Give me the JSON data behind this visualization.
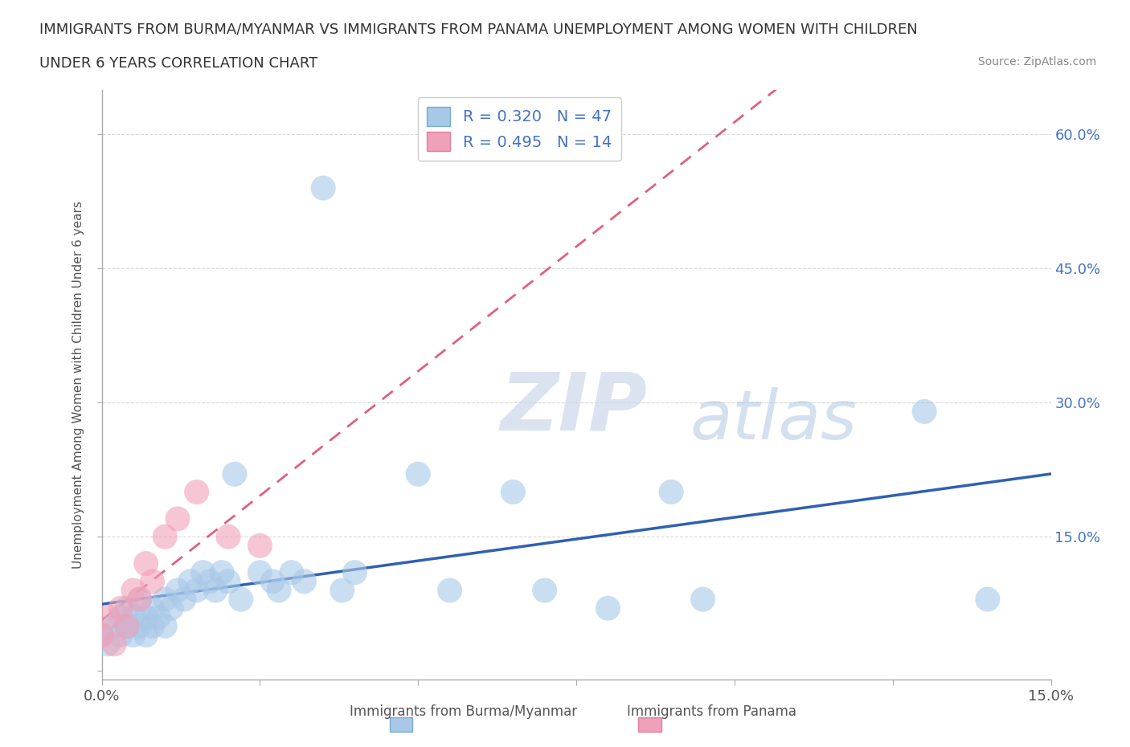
{
  "title_line1": "IMMIGRANTS FROM BURMA/MYANMAR VS IMMIGRANTS FROM PANAMA UNEMPLOYMENT AMONG WOMEN WITH CHILDREN",
  "title_line2": "UNDER 6 YEARS CORRELATION CHART",
  "source": "Source: ZipAtlas.com",
  "ylabel": "Unemployment Among Women with Children Under 6 years",
  "xlim": [
    0,
    0.15
  ],
  "ylim": [
    -0.01,
    0.65
  ],
  "burma_R": 0.32,
  "burma_N": 47,
  "panama_R": 0.495,
  "panama_N": 14,
  "burma_color": "#a8c8e8",
  "panama_color": "#f0a0b8",
  "burma_line_color": "#3060b0",
  "panama_line_color": "#e06080",
  "watermark_zip": "ZIP",
  "watermark_atlas": "atlas",
  "watermark_color_zip": "#c8d8ec",
  "watermark_color_atlas": "#b8cce4",
  "background_color": "#ffffff",
  "grid_color": "#d8d8d8",
  "burma_x": [
    0.0,
    0.001,
    0.002,
    0.003,
    0.003,
    0.004,
    0.004,
    0.005,
    0.005,
    0.006,
    0.006,
    0.007,
    0.007,
    0.008,
    0.008,
    0.009,
    0.01,
    0.01,
    0.011,
    0.012,
    0.013,
    0.014,
    0.015,
    0.016,
    0.017,
    0.018,
    0.019,
    0.02,
    0.021,
    0.022,
    0.025,
    0.027,
    0.028,
    0.03,
    0.032,
    0.035,
    0.038,
    0.04,
    0.05,
    0.055,
    0.065,
    0.07,
    0.08,
    0.09,
    0.095,
    0.13,
    0.14
  ],
  "burma_y": [
    0.04,
    0.03,
    0.05,
    0.06,
    0.04,
    0.05,
    0.07,
    0.04,
    0.06,
    0.08,
    0.05,
    0.06,
    0.04,
    0.07,
    0.05,
    0.06,
    0.08,
    0.05,
    0.07,
    0.09,
    0.08,
    0.1,
    0.09,
    0.11,
    0.1,
    0.09,
    0.11,
    0.1,
    0.22,
    0.08,
    0.11,
    0.1,
    0.09,
    0.11,
    0.1,
    0.54,
    0.09,
    0.11,
    0.22,
    0.09,
    0.2,
    0.09,
    0.07,
    0.2,
    0.08,
    0.29,
    0.08
  ],
  "panama_x": [
    0.0,
    0.001,
    0.002,
    0.003,
    0.004,
    0.005,
    0.006,
    0.007,
    0.008,
    0.01,
    0.012,
    0.015,
    0.02,
    0.025
  ],
  "panama_y": [
    0.04,
    0.06,
    0.03,
    0.07,
    0.05,
    0.09,
    0.08,
    0.12,
    0.1,
    0.15,
    0.17,
    0.2,
    0.15,
    0.14
  ]
}
